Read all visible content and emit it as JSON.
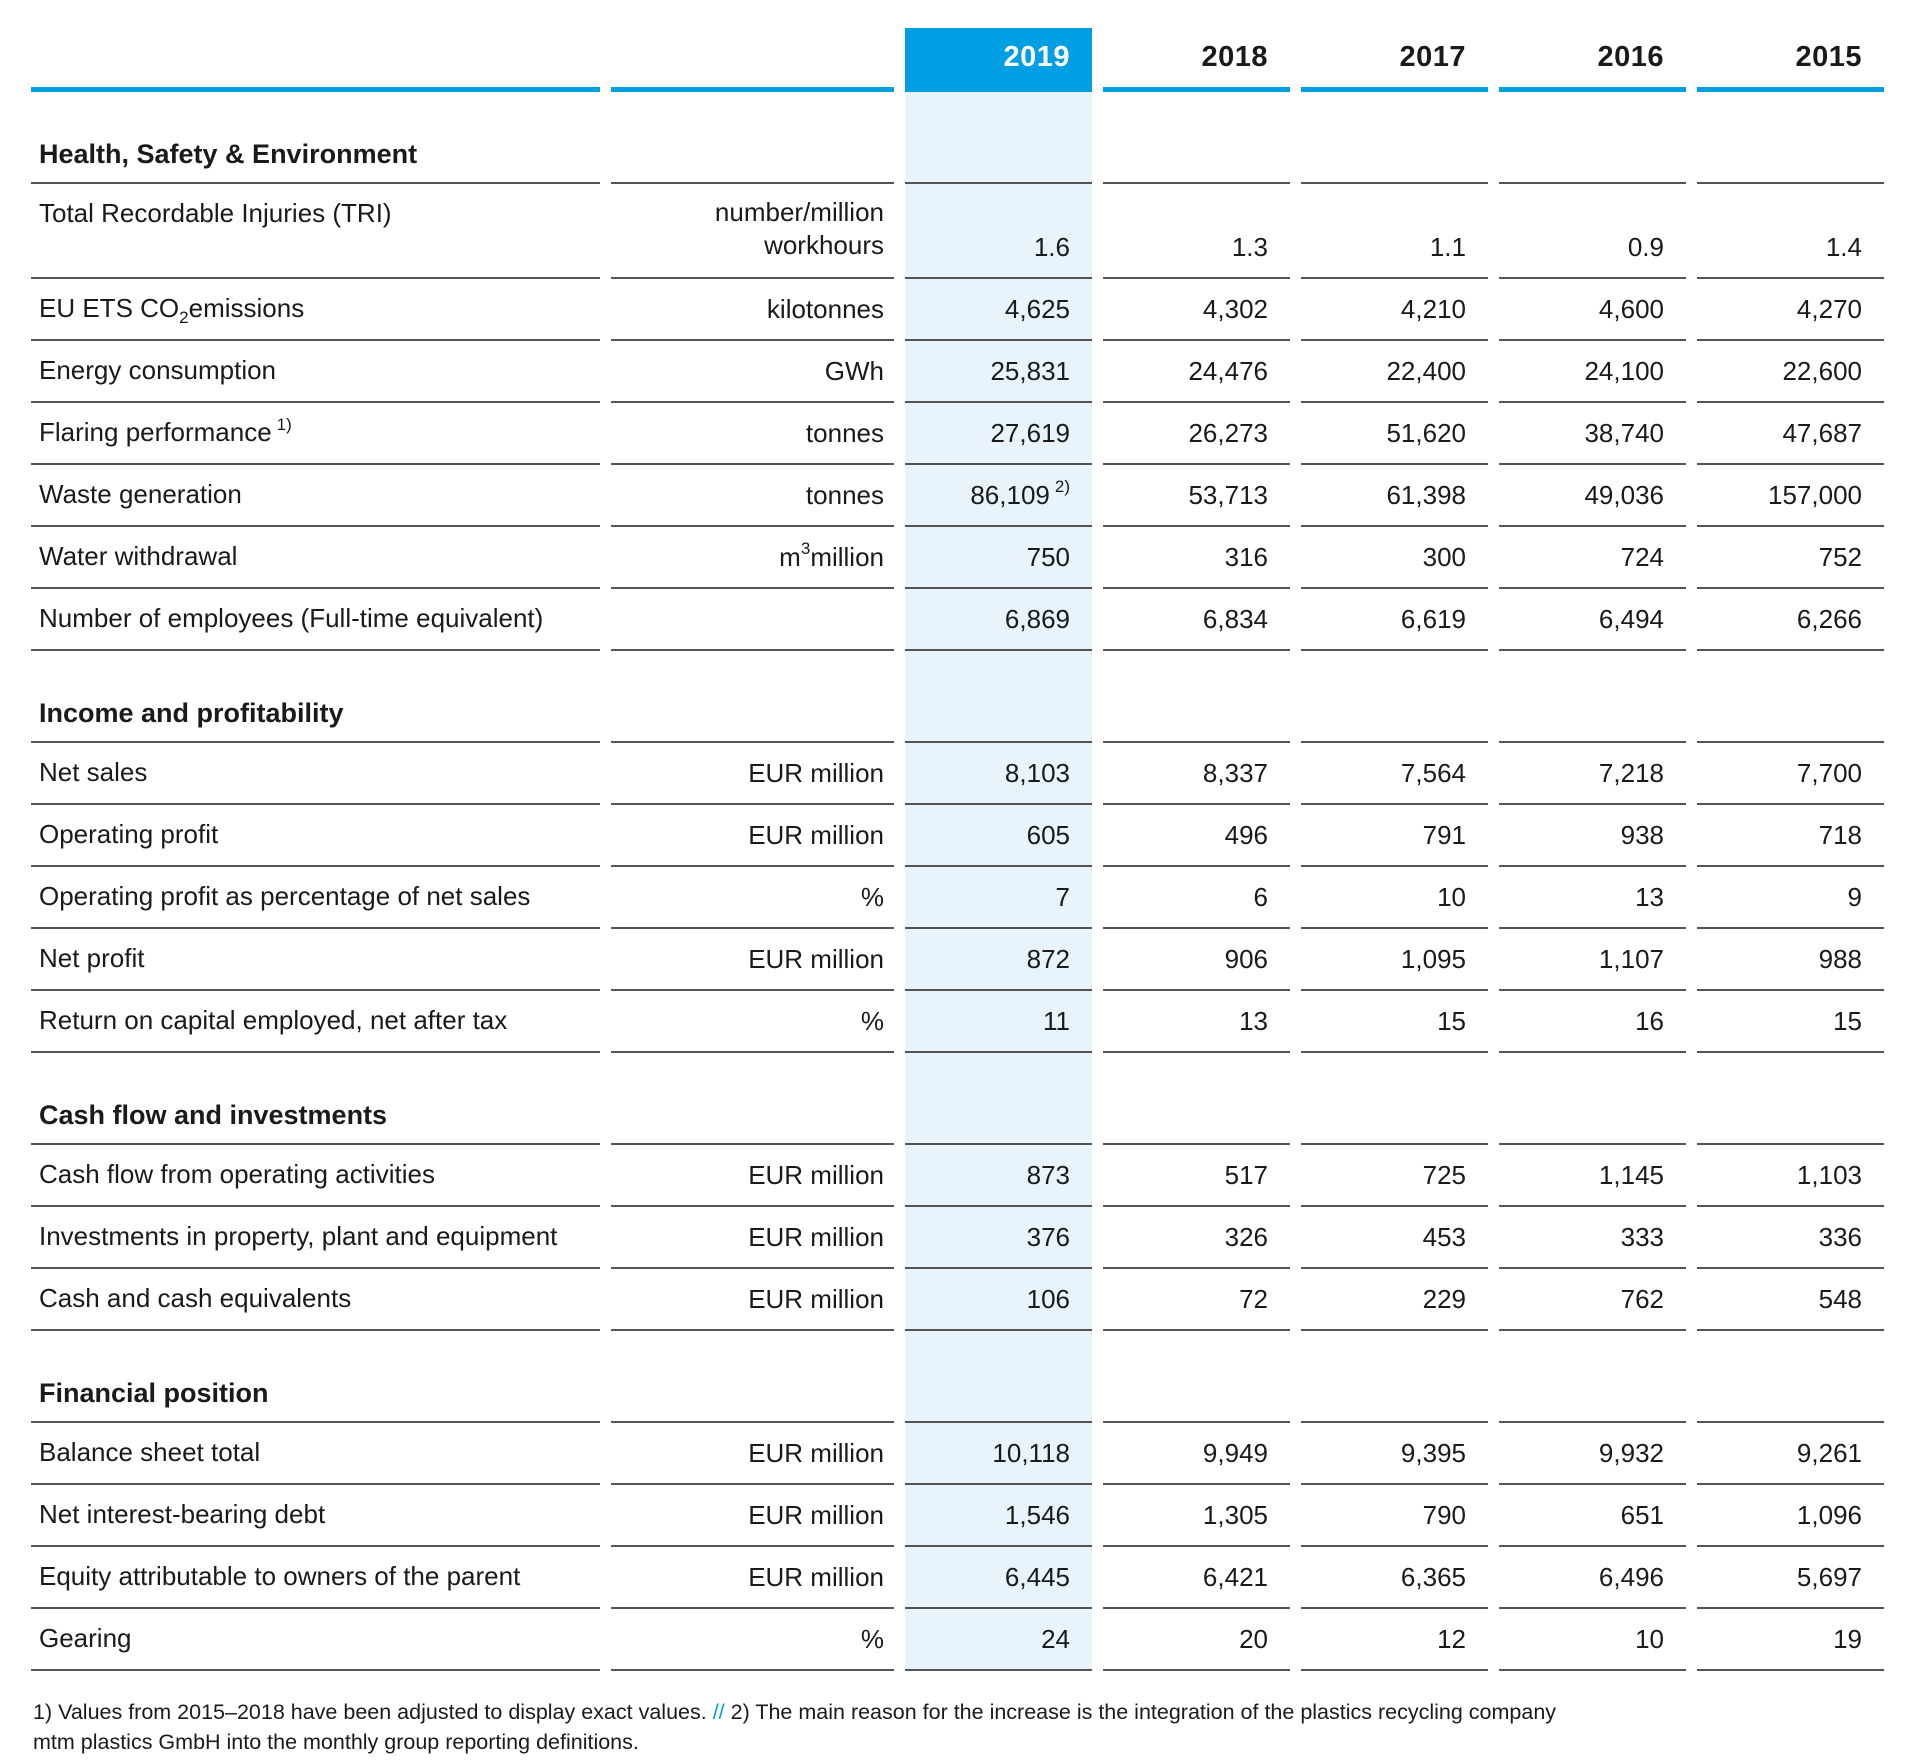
{
  "header": {
    "years": [
      "2019",
      "2018",
      "2017",
      "2016",
      "2015"
    ],
    "highlighted_year": "2019"
  },
  "colors": {
    "accent": "#009ee2",
    "highlight_column": "#e8f3fb",
    "rule": "#545454",
    "header_text_on_accent": "#ffffff"
  },
  "sections": {
    "hse": {
      "title": "Health, Safety & Environment",
      "tri": {
        "label": "Total Recordable Injuries (TRI)",
        "unit_line1": "number/million",
        "unit_line2": "workhours",
        "v": [
          "1.6",
          "1.3",
          "1.1",
          "0.9",
          "1.4"
        ]
      },
      "co2": {
        "label_pre": "EU ETS CO",
        "label_sub": "2",
        "label_post": "emissions",
        "unit": "kilotonnes",
        "v": [
          "4,625",
          "4,302",
          "4,210",
          "4,600",
          "4,270"
        ]
      },
      "energy": {
        "label": "Energy consumption",
        "unit": "GWh",
        "v": [
          "25,831",
          "24,476",
          "22,400",
          "24,100",
          "22,600"
        ]
      },
      "flaring": {
        "label": "Flaring performance",
        "label_sup": "1)",
        "unit": "tonnes",
        "v": [
          "27,619",
          "26,273",
          "51,620",
          "38,740",
          "47,687"
        ]
      },
      "waste": {
        "label": "Waste generation",
        "unit": "tonnes",
        "v": [
          "86,109",
          "53,713",
          "61,398",
          "49,036",
          "157,000"
        ],
        "v0_sup": "2)"
      },
      "water": {
        "label": "Water withdrawal",
        "unit_pre": "m",
        "unit_sup": "3",
        "unit_post": "million",
        "v": [
          "750",
          "316",
          "300",
          "724",
          "752"
        ]
      },
      "employees": {
        "label": "Number of employees (Full-time equivalent)",
        "unit": "",
        "v": [
          "6,869",
          "6,834",
          "6,619",
          "6,494",
          "6,266"
        ]
      }
    },
    "income": {
      "title": "Income and profitability",
      "net_sales": {
        "label": "Net sales",
        "unit": "EUR million",
        "v": [
          "8,103",
          "8,337",
          "7,564",
          "7,218",
          "7,700"
        ]
      },
      "op_profit": {
        "label": "Operating profit",
        "unit": "EUR million",
        "v": [
          "605",
          "496",
          "791",
          "938",
          "718"
        ]
      },
      "op_margin": {
        "label": "Operating profit as percentage of net sales",
        "unit": "%",
        "v": [
          "7",
          "6",
          "10",
          "13",
          "9"
        ]
      },
      "net_profit": {
        "label": "Net profit",
        "unit": "EUR million",
        "v": [
          "872",
          "906",
          "1,095",
          "1,107",
          "988"
        ]
      },
      "roce": {
        "label": "Return on capital employed, net after tax",
        "unit": "%",
        "v": [
          "11",
          "13",
          "15",
          "16",
          "15"
        ]
      }
    },
    "cashflow": {
      "title": "Cash flow and investments",
      "cf_operating": {
        "label": "Cash flow from operating activities",
        "unit": "EUR million",
        "v": [
          "873",
          "517",
          "725",
          "1,145",
          "1,103"
        ]
      },
      "capex": {
        "label": "Investments in property, plant and equipment",
        "unit": "EUR million",
        "v": [
          "376",
          "326",
          "453",
          "333",
          "336"
        ]
      },
      "cash": {
        "label": "Cash and cash equivalents",
        "unit": "EUR million",
        "v": [
          "106",
          "72",
          "229",
          "762",
          "548"
        ]
      }
    },
    "finpos": {
      "title": "Financial position",
      "balance": {
        "label": "Balance sheet total",
        "unit": "EUR million",
        "v": [
          "10,118",
          "9,949",
          "9,395",
          "9,932",
          "9,261"
        ]
      },
      "debt": {
        "label": "Net interest-bearing debt",
        "unit": "EUR million",
        "v": [
          "1,546",
          "1,305",
          "790",
          "651",
          "1,096"
        ]
      },
      "equity": {
        "label": "Equity attributable to owners of the parent",
        "unit": "EUR million",
        "v": [
          "6,445",
          "6,421",
          "6,365",
          "6,496",
          "5,697"
        ]
      },
      "gearing": {
        "label": "Gearing",
        "unit": "%",
        "v": [
          "24",
          "20",
          "12",
          "10",
          "19"
        ]
      }
    }
  },
  "footnotes": {
    "note1": "1) Values from 2015–2018 have been adjusted to display exact values.",
    "separator": "//",
    "note2": "2) The main reason for the increase is the integration of the plastics recycling company mtm plastics GmbH into the monthly group reporting definitions."
  }
}
